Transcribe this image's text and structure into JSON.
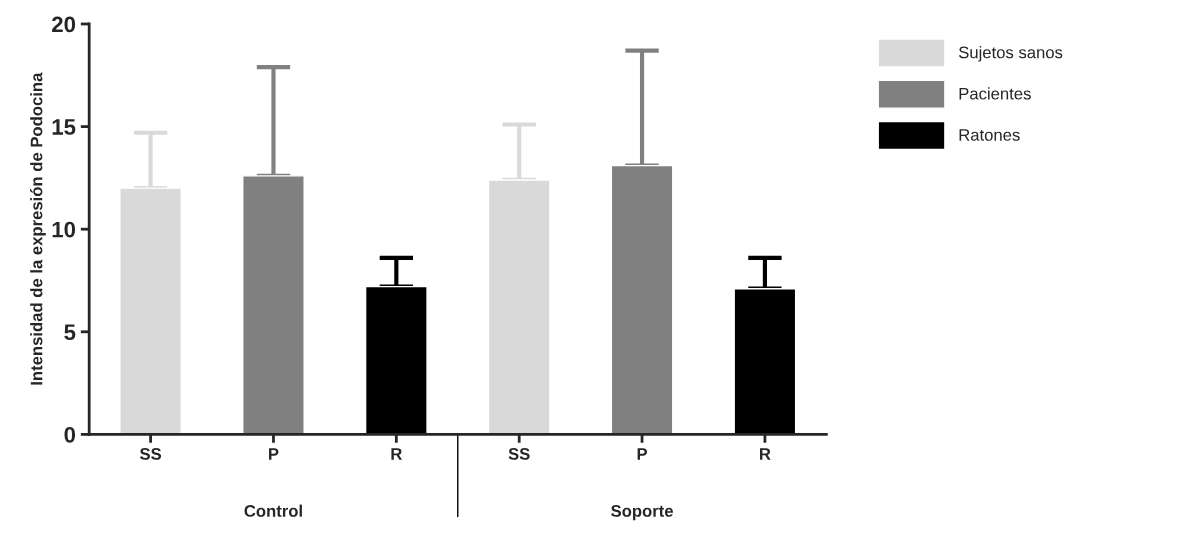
{
  "chart_data": {
    "type": "bar",
    "ylabel": "Intensidad de la expresión de Podocina",
    "categories": [
      "SS",
      "P",
      "R",
      "SS",
      "P",
      "R"
    ],
    "series": [
      {
        "name": "Sujetos sanos",
        "color": "#d9d9d9",
        "values": [
          12.0,
          null,
          null,
          12.4,
          null,
          null
        ],
        "errors": [
          [
            12.0,
            14.7
          ],
          null,
          null,
          [
            12.4,
            15.1
          ],
          null,
          null
        ]
      },
      {
        "name": "Pacientes",
        "color": "#808080",
        "values": [
          null,
          12.6,
          null,
          null,
          13.1,
          null
        ],
        "errors": [
          null,
          [
            12.6,
            17.9
          ],
          null,
          null,
          [
            13.1,
            18.7
          ],
          null
        ]
      },
      {
        "name": "Ratones",
        "color": "#000000",
        "values": [
          null,
          null,
          7.2,
          null,
          null,
          7.1
        ],
        "errors": [
          null,
          null,
          [
            7.2,
            8.6
          ],
          null,
          null,
          [
            7.1,
            8.6
          ]
        ]
      }
    ],
    "annotations": [
      "Control",
      "Soporte"
    ],
    "ylim": [
      0,
      20
    ],
    "yticks": [
      0,
      5,
      10,
      15,
      20
    ],
    "grid": false,
    "legend": "right"
  }
}
